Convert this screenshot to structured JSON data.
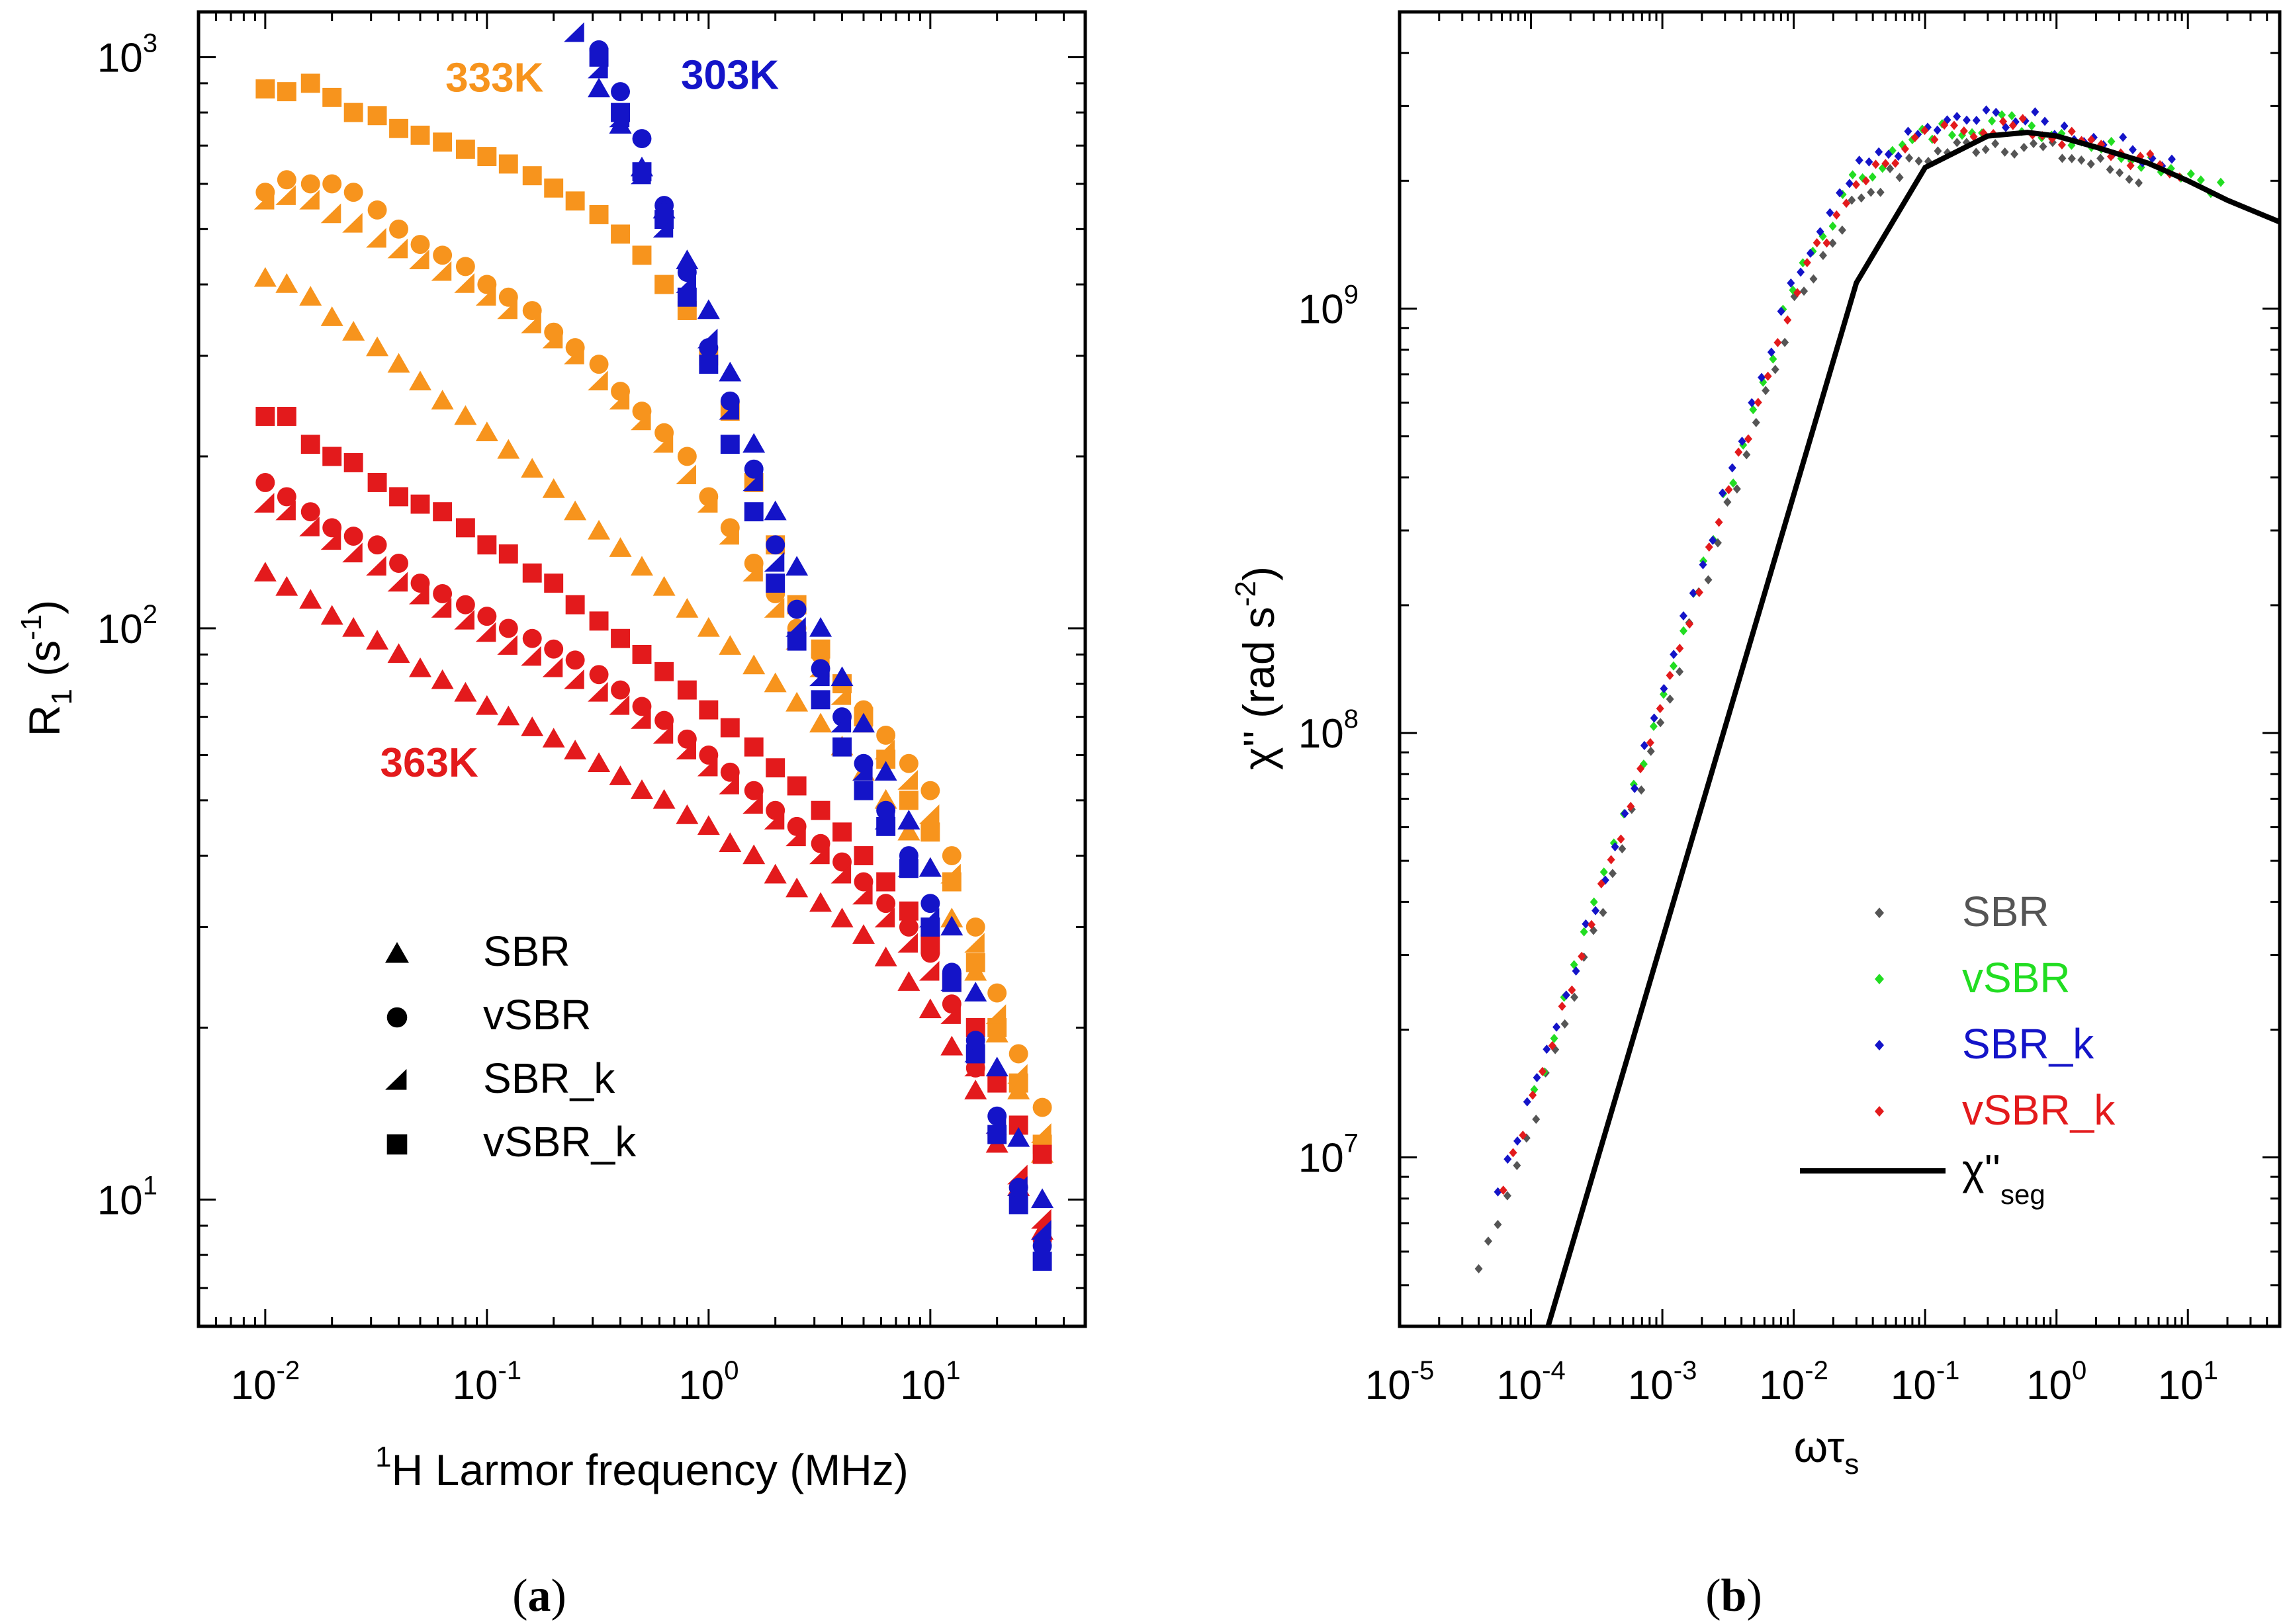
{
  "chart_data": [
    {
      "id": "a",
      "type": "scatter",
      "panel_label": "a",
      "xscale": "log",
      "yscale": "log",
      "xlabel_sup": "1",
      "xlabel": "H Larmor frequency (MHz)",
      "ylabel": "R",
      "ylabel_sub": "1",
      "ylabel_unit": "(s",
      "ylabel_unit_sup": "-1",
      "ylabel_close": ")",
      "xlim": [
        0.005,
        50
      ],
      "ylim": [
        6,
        1200
      ],
      "xticks": [
        {
          "value": 0.01,
          "base": "10",
          "exp": "-2"
        },
        {
          "value": 0.1,
          "base": "10",
          "exp": "-1"
        },
        {
          "value": 1,
          "base": "10",
          "exp": "0"
        },
        {
          "value": 10,
          "base": "10",
          "exp": "1"
        }
      ],
      "yticks": [
        {
          "value": 10,
          "base": "10",
          "exp": "1"
        },
        {
          "value": 100,
          "base": "10",
          "exp": "2"
        },
        {
          "value": 1000,
          "base": "10",
          "exp": "3"
        }
      ],
      "temperature_labels": [
        {
          "text": "333K",
          "color": "#F7941D",
          "x": 0.065,
          "y": 870
        },
        {
          "text": "303K",
          "color": "#1414C8",
          "x": 0.75,
          "y": 880
        },
        {
          "text": "363K",
          "color": "#E31A1C",
          "x": 0.033,
          "y": 55
        }
      ],
      "legend": [
        {
          "label": "SBR",
          "marker": "triangle"
        },
        {
          "label": "vSBR",
          "marker": "circle"
        },
        {
          "label": "SBR_k",
          "marker": "half-triangle"
        },
        {
          "label": "vSBR_k",
          "marker": "square"
        }
      ],
      "colors": {
        "303K": "#1414C8",
        "333K": "#F7941D",
        "363K": "#E31A1C"
      },
      "series": [
        {
          "temp": "333K",
          "sample": "vSBR_k",
          "x": [
            0.01,
            0.0125,
            0.016,
            0.02,
            0.025,
            0.032,
            0.04,
            0.05,
            0.063,
            0.08,
            0.1,
            0.125,
            0.16,
            0.2,
            0.25,
            0.32,
            0.4,
            0.5,
            0.63,
            0.8,
            1.0,
            1.25,
            1.6,
            2.0,
            2.5,
            3.2,
            4.0,
            5.0,
            6.3,
            8.0,
            10.0,
            12.5,
            16,
            20,
            25,
            32
          ],
          "y": [
            880,
            870,
            900,
            850,
            800,
            790,
            750,
            730,
            710,
            690,
            670,
            650,
            620,
            590,
            560,
            530,
            490,
            450,
            400,
            360,
            300,
            240,
            180,
            140,
            110,
            92,
            80,
            70,
            59,
            50,
            44,
            36,
            26,
            20,
            16,
            12.5
          ]
        },
        {
          "temp": "333K",
          "sample": "vSBR",
          "x": [
            0.01,
            0.0125,
            0.016,
            0.02,
            0.025,
            0.032,
            0.04,
            0.05,
            0.063,
            0.08,
            0.1,
            0.125,
            0.16,
            0.2,
            0.25,
            0.32,
            0.4,
            0.5,
            0.63,
            0.8,
            1.0,
            1.25,
            1.6,
            2.0,
            2.5,
            3.2,
            4.0,
            5.0,
            6.3,
            8.0,
            10.0,
            12.5,
            16,
            20,
            25,
            32
          ],
          "y": [
            580,
            610,
            600,
            600,
            580,
            540,
            500,
            470,
            450,
            430,
            400,
            380,
            360,
            330,
            310,
            290,
            260,
            240,
            220,
            200,
            170,
            150,
            130,
            115,
            100,
            90,
            80,
            72,
            65,
            58,
            52,
            40,
            30,
            23,
            18,
            14.5
          ]
        },
        {
          "temp": "333K",
          "sample": "SBR_k",
          "x": [
            0.01,
            0.0125,
            0.016,
            0.02,
            0.025,
            0.032,
            0.04,
            0.05,
            0.063,
            0.08,
            0.1,
            0.125,
            0.16,
            0.2,
            0.25,
            0.32,
            0.4,
            0.5,
            0.63,
            0.8,
            1.0,
            1.25,
            1.6,
            2.0,
            2.5,
            3.2,
            4.0,
            5.0,
            6.3,
            8.0,
            10.0,
            12.5,
            16,
            20,
            25,
            32
          ],
          "y": [
            560,
            570,
            560,
            530,
            510,
            480,
            460,
            440,
            420,
            400,
            380,
            360,
            340,
            320,
            300,
            270,
            250,
            230,
            210,
            185,
            165,
            145,
            125,
            108,
            95,
            85,
            76,
            68,
            61,
            54,
            47,
            37,
            28,
            21,
            16.5,
            13
          ]
        },
        {
          "temp": "333K",
          "sample": "SBR",
          "x": [
            0.01,
            0.0125,
            0.016,
            0.02,
            0.025,
            0.032,
            0.04,
            0.05,
            0.063,
            0.08,
            0.1,
            0.125,
            0.16,
            0.2,
            0.25,
            0.32,
            0.4,
            0.5,
            0.63,
            0.8,
            1.0,
            1.25,
            1.6,
            2.0,
            2.5,
            3.2,
            4.0,
            5.0,
            6.3,
            8.0,
            10.0,
            12.5,
            16,
            20,
            25,
            32
          ],
          "y": [
            410,
            400,
            380,
            350,
            330,
            310,
            290,
            270,
            250,
            235,
            220,
            205,
            190,
            175,
            160,
            148,
            138,
            128,
            118,
            108,
            100,
            93,
            86,
            80,
            74,
            68,
            62,
            56,
            50,
            44,
            38,
            31,
            25,
            19.5,
            15.5,
            12
          ]
        },
        {
          "temp": "363K",
          "sample": "vSBR_k",
          "x": [
            0.01,
            0.0125,
            0.016,
            0.02,
            0.025,
            0.032,
            0.04,
            0.05,
            0.063,
            0.08,
            0.1,
            0.125,
            0.16,
            0.2,
            0.25,
            0.32,
            0.4,
            0.5,
            0.63,
            0.8,
            1.0,
            1.25,
            1.6,
            2.0,
            2.5,
            3.2,
            4.0,
            5.0,
            6.3,
            8.0,
            10.0,
            12.5,
            16,
            20,
            25,
            32
          ],
          "y": [
            235,
            235,
            210,
            200,
            195,
            180,
            170,
            165,
            160,
            150,
            140,
            135,
            125,
            120,
            110,
            103,
            96,
            90,
            84,
            78,
            72,
            67,
            62,
            57,
            53,
            48,
            44,
            40,
            36,
            32,
            28,
            24,
            20,
            16,
            13.5,
            12
          ]
        },
        {
          "temp": "363K",
          "sample": "vSBR",
          "x": [
            0.01,
            0.0125,
            0.016,
            0.02,
            0.025,
            0.032,
            0.04,
            0.05,
            0.063,
            0.08,
            0.1,
            0.125,
            0.16,
            0.2,
            0.25,
            0.32,
            0.4,
            0.5,
            0.63,
            0.8,
            1.0,
            1.25,
            1.6,
            2.0,
            2.5,
            3.2,
            4.0,
            5.0,
            6.3,
            8.0,
            10.0,
            12.5,
            16,
            20,
            25,
            32
          ],
          "y": [
            180,
            170,
            160,
            150,
            145,
            140,
            130,
            120,
            115,
            110,
            105,
            100,
            96,
            92,
            88,
            83,
            78,
            73,
            69,
            64,
            60,
            56,
            52,
            48,
            45,
            42,
            39,
            36,
            33,
            30,
            27,
            22,
            17,
            13,
            10.5,
            8.5
          ]
        },
        {
          "temp": "363K",
          "sample": "SBR_k",
          "x": [
            0.01,
            0.0125,
            0.016,
            0.02,
            0.025,
            0.032,
            0.04,
            0.05,
            0.063,
            0.08,
            0.1,
            0.125,
            0.16,
            0.2,
            0.25,
            0.32,
            0.4,
            0.5,
            0.63,
            0.8,
            1.0,
            1.25,
            1.6,
            2.0,
            2.5,
            3.2,
            4.0,
            5.0,
            6.3,
            8.0,
            10.0,
            12.5,
            16,
            20,
            25,
            32
          ],
          "y": [
            165,
            160,
            150,
            142,
            135,
            128,
            120,
            114,
            108,
            103,
            98,
            93,
            89,
            85,
            81,
            77,
            73,
            69,
            65,
            61,
            57,
            53,
            49,
            46,
            43,
            40,
            37,
            34,
            31,
            28,
            25,
            21,
            17,
            13.5,
            11,
            9.2
          ]
        },
        {
          "temp": "363K",
          "sample": "SBR",
          "x": [
            0.01,
            0.0125,
            0.016,
            0.02,
            0.025,
            0.032,
            0.04,
            0.05,
            0.063,
            0.08,
            0.1,
            0.125,
            0.16,
            0.2,
            0.25,
            0.32,
            0.4,
            0.5,
            0.63,
            0.8,
            1.0,
            1.25,
            1.6,
            2.0,
            2.5,
            3.2,
            4.0,
            5.0,
            6.3,
            8.0,
            10.0,
            12.5,
            16,
            20,
            25,
            32
          ],
          "y": [
            125,
            118,
            112,
            105,
            100,
            95,
            90,
            85,
            81,
            77,
            73,
            70,
            67,
            64,
            61,
            58,
            55,
            52,
            50,
            47,
            45,
            42,
            40,
            37,
            35,
            33,
            31,
            29,
            26.5,
            24,
            21.5,
            18.5,
            15.5,
            12.5,
            10.5,
            8.8
          ]
        },
        {
          "temp": "303K",
          "sample": "vSBR_k",
          "x": [
            0.32,
            0.4,
            0.5,
            0.63,
            0.8,
            1.0,
            1.25,
            1.6,
            2.0,
            2.5,
            3.2,
            4.0,
            5.0,
            6.3,
            8.0,
            10.0,
            12.5,
            16,
            20,
            25,
            32
          ],
          "y": [
            1000,
            800,
            630,
            520,
            380,
            290,
            210,
            160,
            120,
            95,
            75,
            62,
            52,
            45,
            38,
            30,
            24,
            18,
            13,
            9.8,
            7.8
          ]
        },
        {
          "temp": "303K",
          "sample": "vSBR",
          "x": [
            0.32,
            0.4,
            0.5,
            0.63,
            0.8,
            1.0,
            1.25,
            1.6,
            2.0,
            2.5,
            3.2,
            4.0,
            5.0,
            6.3,
            8.0,
            10.0,
            12.5,
            16,
            20,
            25,
            32
          ],
          "y": [
            1030,
            870,
            720,
            550,
            420,
            310,
            250,
            190,
            140,
            108,
            85,
            70,
            58,
            48,
            40,
            33,
            25,
            19,
            14,
            10.5,
            8.3
          ]
        },
        {
          "temp": "303K",
          "sample": "SBR_k",
          "x": [
            0.25,
            0.32,
            0.4,
            0.5,
            0.63,
            0.8,
            1.0,
            1.25,
            1.6,
            2.0,
            2.5,
            3.2,
            4.0,
            5.0,
            6.3,
            8.0,
            10.0,
            12.5,
            16,
            20,
            25,
            32
          ],
          "y": [
            1100,
            950,
            780,
            620,
            500,
            400,
            320,
            240,
            180,
            130,
            100,
            82,
            68,
            56,
            46,
            38,
            31,
            24,
            18,
            13.5,
            10.5,
            8.8
          ]
        },
        {
          "temp": "303K",
          "sample": "SBR",
          "x": [
            0.32,
            0.4,
            0.5,
            0.63,
            0.8,
            1.0,
            1.25,
            1.6,
            2.0,
            2.5,
            3.2,
            4.0,
            5.0,
            6.3,
            8.0,
            10.0,
            12.5,
            16,
            20,
            25,
            32
          ],
          "y": [
            880,
            760,
            640,
            540,
            440,
            360,
            280,
            210,
            160,
            128,
            100,
            82,
            68,
            56,
            46,
            38,
            30,
            23,
            17,
            12.8,
            10
          ]
        }
      ]
    },
    {
      "id": "b",
      "type": "scatter",
      "panel_label": "b",
      "xscale": "log",
      "yscale": "log",
      "xlabel": "ωτ",
      "xlabel_sub": "s",
      "ylabel": "χ'' (rad s",
      "ylabel_sup": "-2",
      "ylabel_close": ")",
      "xlim": [
        1e-05,
        50
      ],
      "ylim": [
        4000000,
        5000000000
      ],
      "xticks": [
        {
          "value": 1e-05,
          "base": "10",
          "exp": "-5"
        },
        {
          "value": 0.0001,
          "base": "10",
          "exp": "-4"
        },
        {
          "value": 0.001,
          "base": "10",
          "exp": "-3"
        },
        {
          "value": 0.01,
          "base": "10",
          "exp": "-2"
        },
        {
          "value": 0.1,
          "base": "10",
          "exp": "-1"
        },
        {
          "value": 1,
          "base": "10",
          "exp": "0"
        },
        {
          "value": 10,
          "base": "10",
          "exp": "1"
        }
      ],
      "yticks": [
        {
          "value": 10000000,
          "base": "10",
          "exp": "7"
        },
        {
          "value": 100000000,
          "base": "10",
          "exp": "8"
        },
        {
          "value": 1000000000,
          "base": "10",
          "exp": "9"
        }
      ],
      "legend": [
        {
          "label": "SBR",
          "color": "#555555"
        },
        {
          "label": "vSBR",
          "color": "#22DD22"
        },
        {
          "label": "SBR_k",
          "color": "#1414C8"
        },
        {
          "label": "vSBR_k",
          "color": "#E31A1C"
        }
      ],
      "line_legend": {
        "label": "χ''",
        "sub": "seg"
      },
      "colors": {
        "SBR": "#555555",
        "vSBR": "#22DD22",
        "SBR_k": "#1414C8",
        "vSBR_k": "#E31A1C",
        "line": "#000000"
      },
      "master_curve": {
        "x": [
          4e-05,
          0.0001,
          0.0003,
          0.001,
          0.003,
          0.01,
          0.03,
          0.1,
          0.2,
          0.35,
          0.6,
          1.0,
          2.0,
          5.0,
          10,
          20
        ],
        "y": [
          6000000,
          13000000,
          37000000,
          120000000,
          350000000,
          1100000000,
          2000000000,
          2500000000,
          2650000000,
          2700000000,
          2650000000,
          2550000000,
          2400000000,
          2200000000,
          2050000000,
          1850000000
        ]
      },
      "segment_line": {
        "x": [
          0.000135,
          0.03,
          0.1,
          0.3,
          0.6,
          1,
          2,
          5,
          10,
          20,
          50
        ],
        "y": [
          4000000,
          1150000000,
          2150000000,
          2550000000,
          2600000000,
          2550000000,
          2400000000,
          2200000000,
          2000000000,
          1800000000,
          1600000000
        ]
      }
    }
  ]
}
